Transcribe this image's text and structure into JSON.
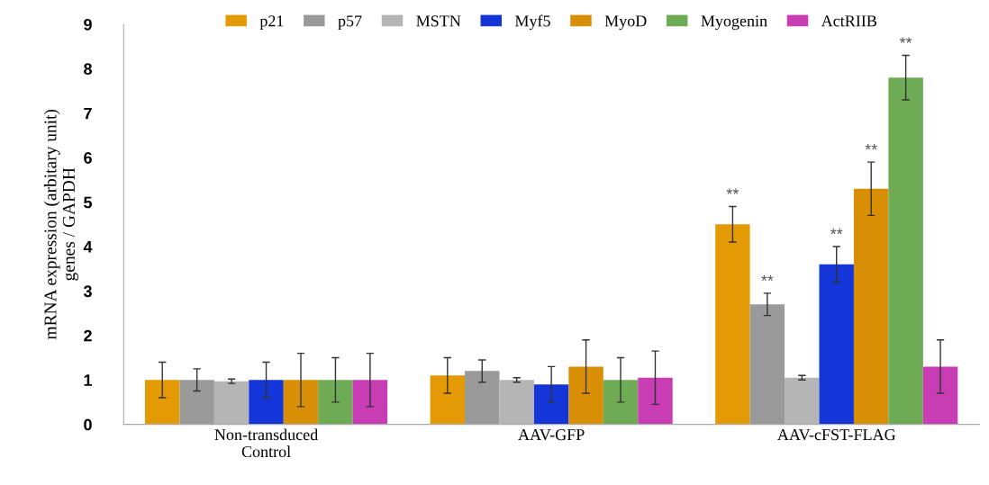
{
  "chart_data": {
    "type": "bar",
    "ylabel": "mRNA expression (arbitary unit)\ngenes / GAPDH",
    "categories": [
      "Non-transduced\nControl",
      "AAV-GFP",
      "AAV-cFST-FLAG"
    ],
    "series": [
      {
        "name": "p21",
        "color": "#e39a05",
        "values": [
          1.0,
          1.1,
          4.5
        ],
        "errors": [
          0.4,
          0.4,
          0.4
        ],
        "value_labels": [
          null,
          null,
          "**"
        ]
      },
      {
        "name": "p57",
        "color": "#9a9a9a",
        "values": [
          1.0,
          1.2,
          2.7
        ],
        "errors": [
          0.25,
          0.25,
          0.25
        ],
        "value_labels": [
          null,
          null,
          "**"
        ]
      },
      {
        "name": "MSTN",
        "color": "#b5b5b5",
        "values": [
          0.97,
          1.0,
          1.05
        ],
        "errors": [
          0.05,
          0.05,
          0.05
        ]
      },
      {
        "name": "Myf5",
        "color": "#1436d8",
        "values": [
          1.0,
          0.9,
          3.6
        ],
        "errors": [
          0.4,
          0.4,
          0.4
        ],
        "value_labels": [
          null,
          null,
          "**"
        ]
      },
      {
        "name": "MyoD",
        "color": "#d98f05",
        "values": [
          1.0,
          1.3,
          5.3
        ],
        "errors": [
          0.6,
          0.6,
          0.6
        ],
        "value_labels": [
          null,
          null,
          "**"
        ]
      },
      {
        "name": "Myogenin",
        "color": "#6faa55",
        "values": [
          1.0,
          1.0,
          7.8
        ],
        "errors": [
          0.5,
          0.5,
          0.5
        ],
        "value_labels": [
          null,
          null,
          "**"
        ]
      },
      {
        "name": "ActRIIB",
        "color": "#c83cb4",
        "values": [
          1.0,
          1.05,
          1.3
        ],
        "errors": [
          0.6,
          0.6,
          0.6
        ]
      }
    ],
    "ylim": [
      0,
      9
    ],
    "yticks": [
      0,
      1,
      2,
      3,
      4,
      5,
      6,
      7,
      8,
      9
    ],
    "grid": false,
    "legend": "top"
  }
}
